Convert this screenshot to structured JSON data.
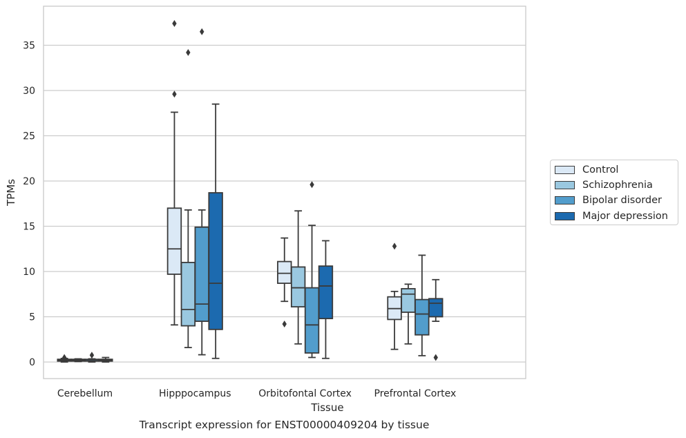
{
  "caption": "Transcript expression for ENST00000409204 by tissue",
  "chart_data": {
    "type": "box",
    "xlabel": "Tissue",
    "ylabel": "TPMs",
    "ylim": [
      -1.8,
      39.3
    ],
    "yticks": [
      0,
      5,
      10,
      15,
      20,
      25,
      30,
      35
    ],
    "grid": "horizontal",
    "legend_position": "right",
    "categories": [
      "Cerebellum",
      "Hipppocampus",
      "Orbitofontal Cortex",
      "Prefrontal Cortex"
    ],
    "series": [
      {
        "name": "Control",
        "color": "#dbe9f6",
        "boxes": [
          {
            "whislo": 0.0,
            "q1": 0.1,
            "med": 0.2,
            "q3": 0.3,
            "whishi": 0.4,
            "fliers": [
              0.5
            ]
          },
          {
            "whislo": 4.1,
            "q1": 9.7,
            "med": 12.5,
            "q3": 17.0,
            "whishi": 27.6,
            "fliers": [
              29.6,
              37.4
            ]
          },
          {
            "whislo": 6.7,
            "q1": 8.7,
            "med": 9.8,
            "q3": 11.1,
            "whishi": 13.7,
            "fliers": [
              4.2
            ]
          },
          {
            "whislo": 1.4,
            "q1": 4.7,
            "med": 5.9,
            "q3": 7.2,
            "whishi": 7.8,
            "fliers": [
              12.8
            ]
          }
        ]
      },
      {
        "name": "Schizophrenia",
        "color": "#9ac8e0",
        "boxes": [
          {
            "whislo": 0.05,
            "q1": 0.1,
            "med": 0.2,
            "q3": 0.3,
            "whishi": 0.35,
            "fliers": []
          },
          {
            "whislo": 1.6,
            "q1": 4.0,
            "med": 5.8,
            "q3": 11.0,
            "whishi": 16.8,
            "fliers": [
              34.2
            ]
          },
          {
            "whislo": 2.0,
            "q1": 6.1,
            "med": 8.2,
            "q3": 10.5,
            "whishi": 16.7,
            "fliers": []
          },
          {
            "whislo": 2.0,
            "q1": 5.5,
            "med": 7.5,
            "q3": 8.1,
            "whishi": 8.6,
            "fliers": []
          }
        ]
      },
      {
        "name": "Bipolar disorder",
        "color": "#529dcc",
        "boxes": [
          {
            "whislo": 0.0,
            "q1": 0.1,
            "med": 0.15,
            "q3": 0.3,
            "whishi": 0.35,
            "fliers": [
              0.75
            ]
          },
          {
            "whislo": 0.8,
            "q1": 4.5,
            "med": 6.4,
            "q3": 14.9,
            "whishi": 16.8,
            "fliers": [
              36.5
            ]
          },
          {
            "whislo": 0.5,
            "q1": 1.0,
            "med": 4.1,
            "q3": 8.2,
            "whishi": 15.1,
            "fliers": [
              19.6
            ]
          },
          {
            "whislo": 0.7,
            "q1": 3.0,
            "med": 5.3,
            "q3": 6.9,
            "whishi": 11.8,
            "fliers": []
          }
        ]
      },
      {
        "name": "Major depression",
        "color": "#1c6aaf",
        "boxes": [
          {
            "whislo": 0.0,
            "q1": 0.1,
            "med": 0.2,
            "q3": 0.3,
            "whishi": 0.5,
            "fliers": []
          },
          {
            "whislo": 0.4,
            "q1": 3.6,
            "med": 8.7,
            "q3": 18.7,
            "whishi": 28.5,
            "fliers": []
          },
          {
            "whislo": 0.4,
            "q1": 4.8,
            "med": 8.4,
            "q3": 10.6,
            "whishi": 13.4,
            "fliers": []
          },
          {
            "whislo": 4.5,
            "q1": 5.0,
            "med": 6.5,
            "q3": 7.0,
            "whishi": 9.1,
            "fliers": [
              0.5
            ]
          }
        ]
      }
    ]
  }
}
